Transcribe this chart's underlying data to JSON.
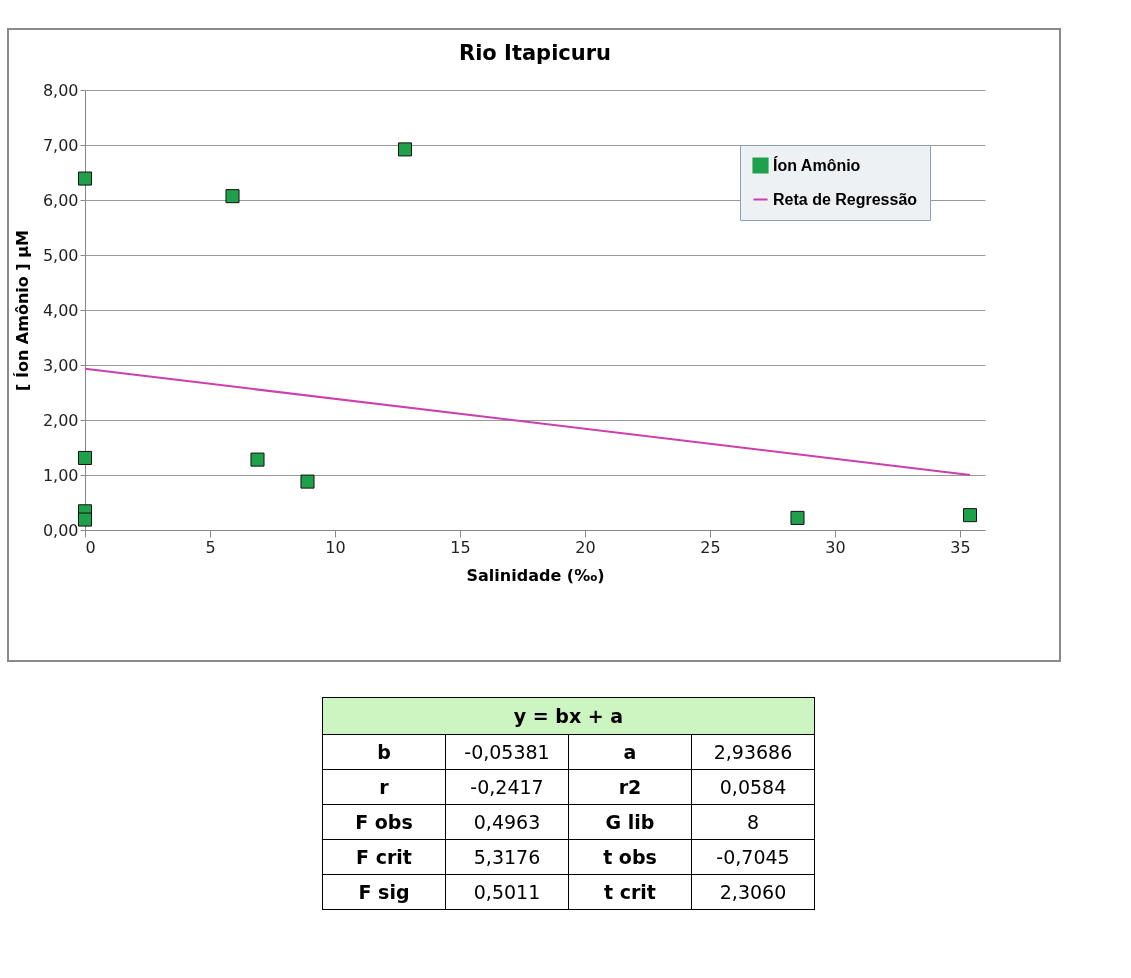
{
  "chart_data": [
    {
      "type": "scatter",
      "title": "Rio Itapicuru",
      "xlabel": "Salinidade (‰)",
      "ylabel": "[ Íon Amônio ] µM",
      "xlim": [
        0,
        36
      ],
      "xticks": [
        0,
        5,
        10,
        15,
        20,
        25,
        30,
        35
      ],
      "ylim": [
        0,
        8
      ],
      "yticks": [
        {
          "value": 0,
          "label": "0,00"
        },
        {
          "value": 1,
          "label": "1,00"
        },
        {
          "value": 2,
          "label": "2,00"
        },
        {
          "value": 3,
          "label": "3,00"
        },
        {
          "value": 4,
          "label": "4,00"
        },
        {
          "value": 5,
          "label": "5,00"
        },
        {
          "value": 6,
          "label": "6,00"
        },
        {
          "value": 7,
          "label": "7,00"
        },
        {
          "value": 8,
          "label": "8,00"
        }
      ],
      "grid": "y",
      "legend": "top right",
      "series": [
        {
          "name": "Íon  Amônio",
          "type": "scatter",
          "marker": "square",
          "color": "#1fa04b",
          "x": [
            0,
            0,
            0,
            0,
            5.9,
            6.9,
            8.9,
            12.8,
            28.5,
            35.4
          ],
          "values": [
            6.39,
            1.31,
            0.34,
            0.19,
            6.07,
            1.28,
            0.88,
            6.92,
            0.22,
            0.27
          ]
        },
        {
          "name": "Reta de Regressão",
          "type": "line",
          "marker": "none",
          "color": "#cc3fae",
          "x": [
            0,
            35.4
          ],
          "values": [
            2.93,
            1.0
          ]
        }
      ]
    },
    {
      "type": "other",
      "title": "y = bx + a",
      "annotations": [
        "b",
        "-0,05381",
        "a",
        "2,93686",
        "r",
        "-0,2417",
        "r2",
        "0,0584",
        "F obs",
        "0,4963",
        "G lib",
        "8",
        "F crit",
        "5,3176",
        "t obs",
        "-0,7045",
        "F sig",
        "0,5011",
        "t crit",
        "2,3060"
      ]
    }
  ]
}
